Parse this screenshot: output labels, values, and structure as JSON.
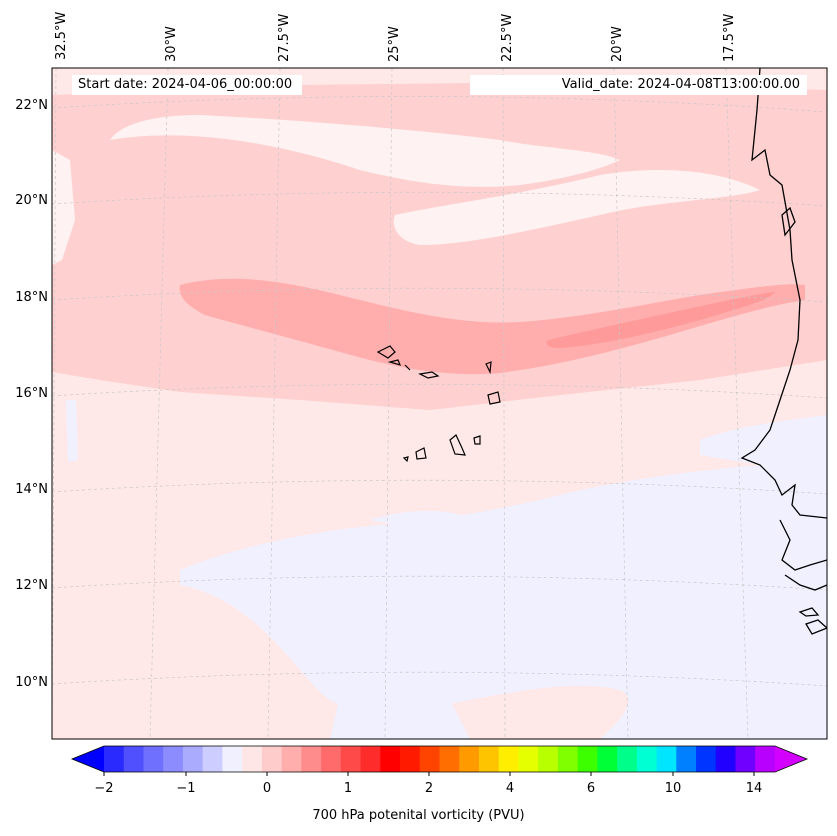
{
  "map": {
    "info": {
      "start_date": "Start date: 2024-04-06_00:00:00",
      "valid_date": "Valid_date: 2024-04-08T13:00:00.00"
    },
    "longitude_labels": [
      "32.5°W",
      "30°W",
      "27.5°W",
      "25°W",
      "22.5°W",
      "20°W",
      "17.5°W"
    ],
    "latitude_labels": [
      "22°N",
      "20°N",
      "18°N",
      "16°N",
      "14°N",
      "12°N",
      "10°N"
    ],
    "field_colors": {
      "background": "#ffe8e8",
      "band_light": "#ffd0d0",
      "band_core": "#ffadad",
      "band_peak": "#ff9a9a",
      "negative": "#f0f0ff",
      "near_zero": "#fff2f2",
      "coast": "#000000"
    }
  },
  "colorbar": {
    "title": "700 hPa potenital vorticity (PVU)",
    "ticks": [
      "−2",
      "−1",
      "0",
      "1",
      "2",
      "4",
      "6",
      "10",
      "14"
    ],
    "colors": [
      "#0000ff",
      "#2a2aff",
      "#5050ff",
      "#7070ff",
      "#8c8cff",
      "#aaaaff",
      "#cdcdff",
      "#f0f0ff",
      "#ffe6e6",
      "#ffcccc",
      "#ffadad",
      "#ff8c8c",
      "#ff6b6b",
      "#ff4a4a",
      "#ff2c2c",
      "#ff0000",
      "#ff1a00",
      "#ff4400",
      "#ff6e00",
      "#ff9a00",
      "#ffc400",
      "#ffee00",
      "#e6ff00",
      "#b8ff00",
      "#80ff00",
      "#3cff00",
      "#00ff36",
      "#00ff8a",
      "#00ffd2",
      "#00e5ff",
      "#0080ff",
      "#0034ff",
      "#2200ff",
      "#7000ff",
      "#b800ff",
      "#d400ff"
    ]
  }
}
